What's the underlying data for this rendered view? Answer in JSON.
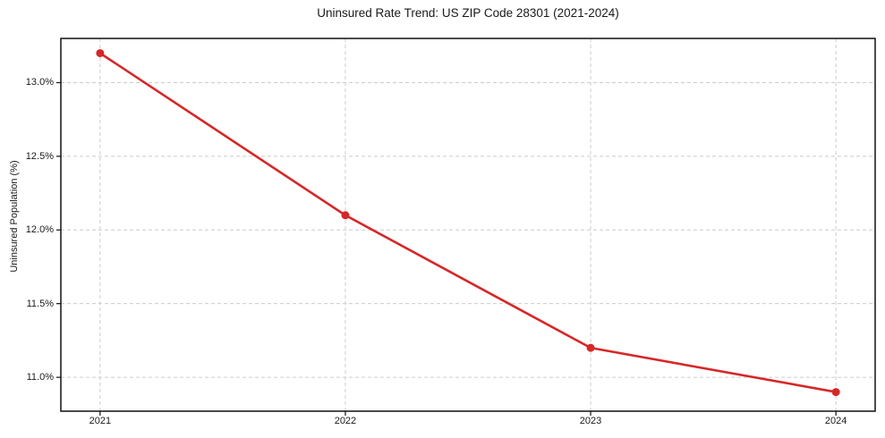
{
  "chart_data": {
    "type": "line",
    "title": "Uninsured Rate Trend: US ZIP Code 28301 (2021-2024)",
    "xlabel": "",
    "ylabel": "Uninsured Population (%)",
    "x": [
      2021,
      2022,
      2023,
      2024
    ],
    "x_tick_labels": [
      "2021",
      "2022",
      "2023",
      "2024"
    ],
    "series": [
      {
        "name": "Uninsured Rate",
        "values": [
          13.2,
          12.1,
          11.2,
          10.9
        ],
        "color": "#d62728",
        "marker": "circle"
      }
    ],
    "y_ticks": [
      11.0,
      11.5,
      12.0,
      12.5,
      13.0
    ],
    "y_tick_labels": [
      "11.0%",
      "11.5%",
      "12.0%",
      "12.5%",
      "13.0%"
    ],
    "xlim": [
      2020.84,
      2024.16
    ],
    "ylim": [
      10.77,
      13.3
    ],
    "grid": "dashed",
    "grid_color": "#cccccc",
    "frame_color": "#111111",
    "legend_position": "none"
  }
}
